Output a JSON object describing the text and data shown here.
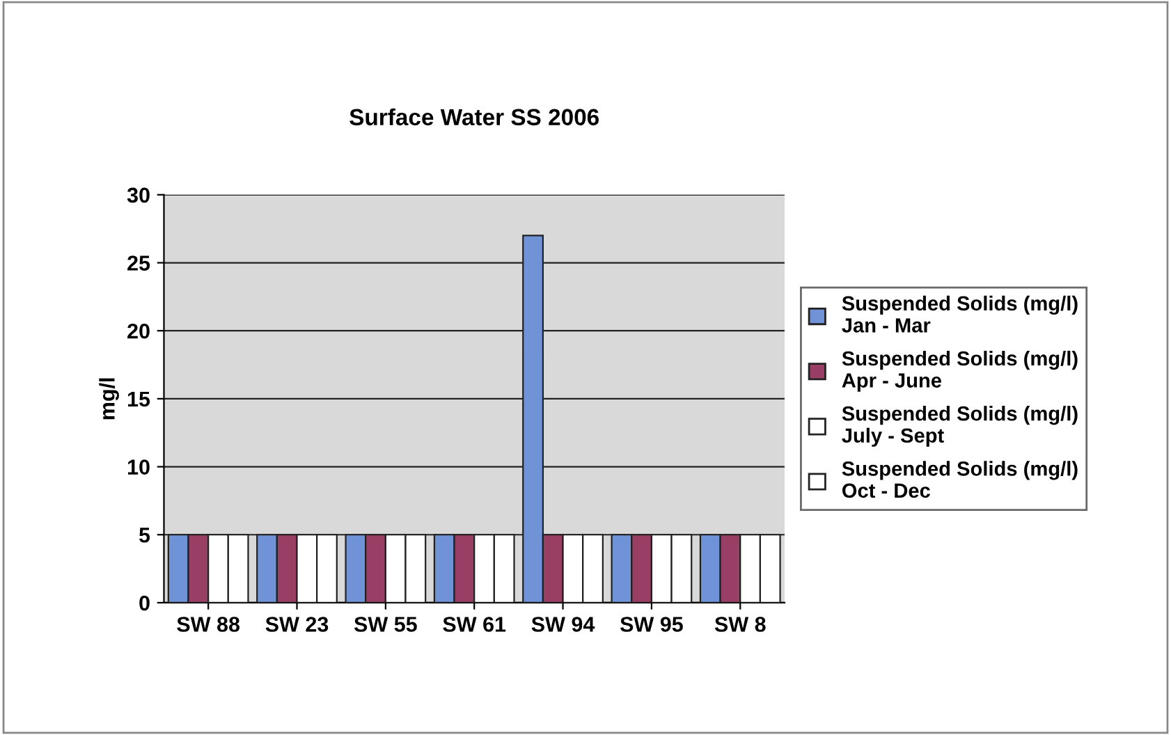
{
  "chart_data": {
    "type": "bar",
    "title": "Surface Water SS 2006",
    "ylabel": "mg/l",
    "categories": [
      "SW 88",
      "SW 23",
      "SW 55",
      "SW 61",
      "SW 94",
      "SW 95",
      "SW 8"
    ],
    "series": [
      {
        "name": "Suspended Solids (mg/l)\nJan - Mar",
        "color": "#6f93d6",
        "values": [
          5,
          5,
          5,
          5,
          27,
          5,
          5
        ]
      },
      {
        "name": "Suspended Solids (mg/l)\nApr - June",
        "color": "#993f66",
        "values": [
          5,
          5,
          5,
          5,
          5,
          5,
          5
        ]
      },
      {
        "name": "Suspended Solids (mg/l)\nJuly - Sept",
        "color": "#ffffff",
        "values": [
          5,
          5,
          5,
          5,
          5,
          5,
          5
        ]
      },
      {
        "name": "Suspended Solids (mg/l)\nOct - Dec",
        "color": "#ffffff",
        "values": [
          5,
          5,
          5,
          5,
          5,
          5,
          5
        ]
      }
    ],
    "ylim": [
      0,
      30
    ],
    "yticks": [
      0,
      5,
      10,
      15,
      20,
      25,
      30
    ],
    "grid": "y",
    "legend": "right"
  }
}
